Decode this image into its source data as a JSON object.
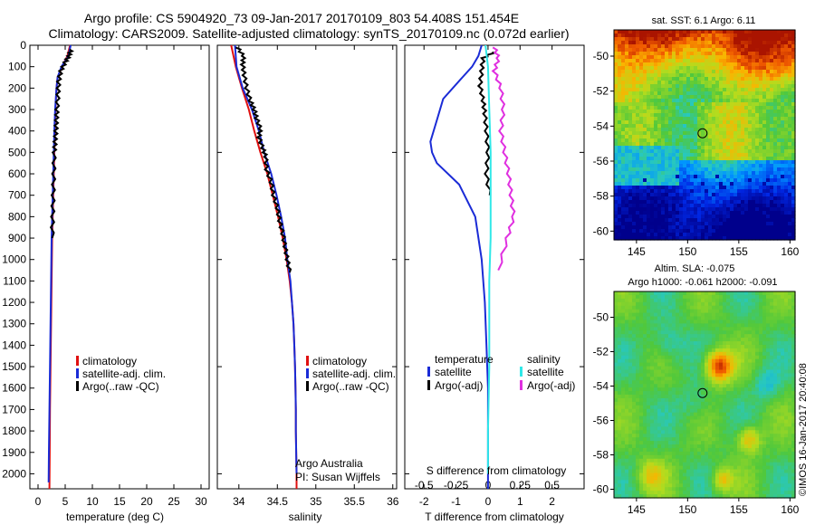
{
  "header": {
    "line1": "Argo profile: CS 5904920_73 09-Jan-2017 20170109_803 54.408S 151.454E",
    "line2": "Climatology: CARS2009. Satellite-adjusted climatology: synTS_20170109.nc (0.072d earlier)"
  },
  "colors": {
    "climatology": "#e01010",
    "satellite": "#1a2bd6",
    "argo": "#000000",
    "sal_satellite": "#30e8e8",
    "sal_argo": "#e030e0"
  },
  "chart_data": [
    {
      "type": "line",
      "name": "temperature-profile",
      "xlabel": "temperature (deg C)",
      "ylabel": "",
      "xlim": [
        -1.5,
        31.5
      ],
      "ylim": [
        2070,
        0
      ],
      "xticks": [
        "0",
        "5",
        "10",
        "15",
        "20",
        "25",
        "30"
      ],
      "yticks": [
        "0",
        "100",
        "200",
        "300",
        "400",
        "500",
        "600",
        "700",
        "800",
        "900",
        "1000",
        "1100",
        "1200",
        "1300",
        "1400",
        "1500",
        "1600",
        "1700",
        "1800",
        "1900",
        "2000"
      ],
      "legend": [
        "climatology",
        "satellite-adj. clim.",
        "Argo(..raw -QC)"
      ],
      "legend_placement": "lower-right",
      "series": [
        {
          "name": "climatology",
          "x": [
            5.9,
            5.4,
            4.4,
            3.6,
            3.4,
            3.2,
            3.1,
            3.0,
            2.9,
            2.8,
            2.7,
            2.6,
            2.55,
            2.5,
            2.45,
            2.4,
            2.35,
            2.3,
            2.25,
            2.2,
            2.15,
            2.1
          ],
          "y": [
            0,
            50,
            100,
            150,
            200,
            300,
            400,
            500,
            600,
            700,
            800,
            900,
            1000,
            1100,
            1200,
            1300,
            1400,
            1500,
            1600,
            1700,
            1900,
            2070
          ]
        },
        {
          "name": "satellite-adj. clim.",
          "x": [
            6.0,
            5.6,
            4.3,
            3.6,
            3.4,
            3.15,
            3.0,
            2.9,
            2.8,
            2.7,
            2.6,
            2.5,
            2.45,
            2.4,
            2.35,
            2.3,
            2.25,
            2.2,
            2.15,
            2.1,
            2.05,
            2.0,
            1.95
          ],
          "y": [
            0,
            50,
            100,
            150,
            200,
            300,
            400,
            500,
            600,
            700,
            800,
            900,
            1000,
            1100,
            1200,
            1300,
            1400,
            1500,
            1600,
            1700,
            1800,
            1900,
            2040
          ]
        },
        {
          "name": "Argo(..raw -QC)",
          "x": [
            6.1,
            5.7,
            5.0,
            4.2,
            3.8,
            3.7,
            3.5,
            3.4,
            3.3,
            3.15,
            3.0,
            2.9,
            2.8,
            2.7,
            2.6
          ],
          "y": [
            20,
            50,
            80,
            120,
            170,
            230,
            300,
            350,
            400,
            450,
            500,
            600,
            700,
            800,
            900
          ]
        }
      ]
    },
    {
      "type": "line",
      "name": "salinity-profile",
      "xlabel": "salinity",
      "xlim": [
        33.72,
        36.05
      ],
      "ylim": [
        2070,
        0
      ],
      "xticks": [
        "34",
        "34.5",
        "35",
        "35.5",
        "36"
      ],
      "legend": [
        "climatology",
        "satellite-adj. clim.",
        "Argo(..raw -QC)"
      ],
      "legend_placement": "lower-right",
      "annotation": [
        "Argo Australia",
        "PI: Susan Wijffels"
      ],
      "series": [
        {
          "name": "climatology",
          "x": [
            33.9,
            33.96,
            34.04,
            34.13,
            34.2,
            34.28,
            34.37,
            34.44,
            34.51,
            34.57,
            34.62,
            34.66,
            34.69,
            34.71,
            34.72,
            34.73,
            34.735,
            34.74,
            34.74,
            34.745,
            34.75,
            34.75
          ],
          "y": [
            0,
            100,
            200,
            300,
            400,
            500,
            600,
            700,
            800,
            900,
            1000,
            1100,
            1200,
            1300,
            1400,
            1500,
            1600,
            1700,
            1800,
            1900,
            2000,
            2070
          ]
        },
        {
          "name": "satellite-adj. clim.",
          "x": [
            33.95,
            33.97,
            34.05,
            34.17,
            34.26,
            34.33,
            34.42,
            34.49,
            34.55,
            34.6,
            34.63,
            34.67,
            34.69,
            34.71,
            34.72,
            34.73,
            34.735,
            34.74,
            34.74,
            34.745,
            34.75
          ],
          "y": [
            0,
            100,
            200,
            300,
            400,
            500,
            600,
            700,
            800,
            900,
            1000,
            1100,
            1200,
            1300,
            1400,
            1500,
            1600,
            1700,
            1800,
            1900,
            2000
          ]
        },
        {
          "name": "Argo(..raw -QC)",
          "x": [
            33.98,
            34.06,
            34.05,
            34.07,
            34.1,
            34.15,
            34.2,
            34.23,
            34.28,
            34.26,
            34.31,
            34.35,
            34.36,
            34.42,
            34.45,
            34.5,
            34.53,
            34.57,
            34.6,
            34.63,
            34.66
          ],
          "y": [
            10,
            50,
            90,
            140,
            200,
            260,
            300,
            340,
            390,
            430,
            480,
            520,
            580,
            640,
            700,
            760,
            820,
            880,
            940,
            1000,
            1060
          ]
        }
      ]
    },
    {
      "type": "line",
      "name": "difference-profile",
      "xlabel": "T difference from climatology",
      "xlabel_top": "S difference from climatology",
      "xlim": [
        -2.6,
        3.0
      ],
      "ylim": [
        2070,
        0
      ],
      "xticks": [
        "-2",
        "-1",
        "0",
        "1",
        "2"
      ],
      "xticks_top": [
        "-0.5",
        "-0.25",
        "0",
        "0.25",
        "0.5"
      ],
      "legend_temperature": [
        "temperature",
        "satellite",
        "Argo(-adj)"
      ],
      "legend_salinity": [
        "salinity",
        "satellite",
        "Argo(-adj)"
      ],
      "legend_placement": "lower-center",
      "series": [
        {
          "name": "T satellite",
          "x": [
            -0.2,
            -0.3,
            -0.5,
            -0.8,
            -1.4,
            -1.6,
            -1.8,
            -1.75,
            -1.6,
            -0.9,
            -0.4,
            -0.2,
            -0.1,
            -0.05,
            0,
            0,
            0,
            0,
            0,
            0
          ],
          "y": [
            0,
            50,
            100,
            150,
            250,
            350,
            450,
            500,
            550,
            650,
            800,
            1000,
            1200,
            1400,
            1600,
            1700,
            1800,
            1900,
            2000,
            2070
          ]
        },
        {
          "name": "T Argo(-adj)",
          "x": [
            0.2,
            -0.15,
            -0.2,
            -0.25,
            -0.15,
            -0.1,
            -0.05,
            0.0,
            -0.05,
            0.05
          ],
          "y": [
            30,
            60,
            120,
            190,
            260,
            320,
            400,
            500,
            600,
            700
          ]
        },
        {
          "name": "S satellite",
          "x": [
            -0.02,
            0.0,
            0.01,
            0.02,
            0.02,
            0.02,
            0.01,
            0.01,
            0.01,
            0.0,
            0.0
          ],
          "y": [
            0,
            100,
            300,
            500,
            700,
            900,
            1100,
            1300,
            1500,
            1800,
            2000
          ]
        },
        {
          "name": "S Argo(-adj)",
          "x": [
            0.05,
            0.08,
            0.05,
            0.1,
            0.12,
            0.1,
            0.13,
            0.16,
            0.18,
            0.2,
            0.15,
            0.08
          ],
          "y": [
            10,
            60,
            120,
            200,
            300,
            400,
            500,
            600,
            700,
            800,
            900,
            1050
          ]
        }
      ]
    },
    {
      "type": "heatmap",
      "name": "sst-map",
      "title": "sat. SST: 6.1  Argo: 6.11",
      "xticks": [
        "145",
        "150",
        "155",
        "160"
      ],
      "yticks": [
        "-50",
        "-52",
        "-54",
        "-56",
        "-58",
        "-60"
      ],
      "xlim": [
        142.8,
        160.5
      ],
      "ylim": [
        -60.5,
        -48.5
      ],
      "marker": {
        "lon": 151.454,
        "lat": -54.408
      }
    },
    {
      "type": "heatmap",
      "name": "sla-map",
      "title": "Altim. SLA: -0.075",
      "subtitle": "Argo h1000: -0.061 h2000: -0.091",
      "xticks": [
        "145",
        "150",
        "155",
        "160"
      ],
      "yticks": [
        "-50",
        "-52",
        "-54",
        "-56",
        "-58",
        "-60"
      ],
      "xlim": [
        142.8,
        160.5
      ],
      "ylim": [
        -60.5,
        -48.5
      ],
      "marker": {
        "lon": 151.454,
        "lat": -54.408
      }
    }
  ],
  "credit": "©IMOS 16-Jan-2017 20:40:08"
}
